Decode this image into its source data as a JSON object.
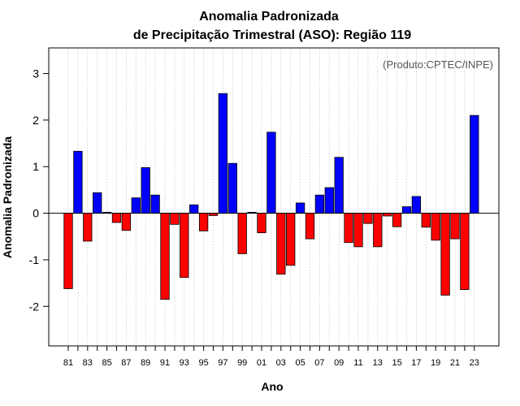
{
  "chart_data": {
    "type": "bar",
    "title_line1": "Anomalia Padronizada",
    "title_line2": "de Precipitação Trimestral (ASO): Região 119",
    "xlabel": "Ano",
    "ylabel": "Anomalia Padronizada",
    "credit": "(Produto:CPTEC/INPE)",
    "ylim": [
      -2.85,
      3.55
    ],
    "yticks": [
      "-2",
      "-1",
      "0",
      "1",
      "2",
      "3"
    ],
    "positive_color": "#0000ff",
    "negative_color": "#ff0000",
    "x_tick_labels": [
      "81",
      "83",
      "85",
      "87",
      "89",
      "91",
      "93",
      "95",
      "97",
      "99",
      "01",
      "03",
      "05",
      "07",
      "09",
      "11",
      "13",
      "15",
      "17",
      "19",
      "21",
      "23"
    ],
    "categories": [
      "1981",
      "1982",
      "1983",
      "1984",
      "1985",
      "1986",
      "1987",
      "1988",
      "1989",
      "1990",
      "1991",
      "1992",
      "1993",
      "1994",
      "1995",
      "1996",
      "1997",
      "1998",
      "1999",
      "2000",
      "2001",
      "2002",
      "2003",
      "2004",
      "2005",
      "2006",
      "2007",
      "2008",
      "2009",
      "2010",
      "2011",
      "2012",
      "2013",
      "2014",
      "2015",
      "2016",
      "2017",
      "2018",
      "2019",
      "2020",
      "2021",
      "2022",
      "2023"
    ],
    "values": [
      -1.62,
      1.33,
      -0.6,
      0.44,
      0.02,
      -0.2,
      -0.37,
      0.33,
      0.98,
      0.39,
      -1.85,
      -0.24,
      -1.38,
      0.18,
      -0.38,
      -0.05,
      2.57,
      1.07,
      -0.87,
      0.02,
      -0.42,
      1.74,
      -1.31,
      -1.12,
      0.22,
      -0.55,
      0.39,
      0.55,
      1.2,
      -0.63,
      -0.72,
      -0.22,
      -0.72,
      -0.06,
      -0.29,
      0.14,
      0.36,
      -0.3,
      -0.58,
      -1.76,
      -0.55,
      -1.64,
      2.1
    ]
  }
}
